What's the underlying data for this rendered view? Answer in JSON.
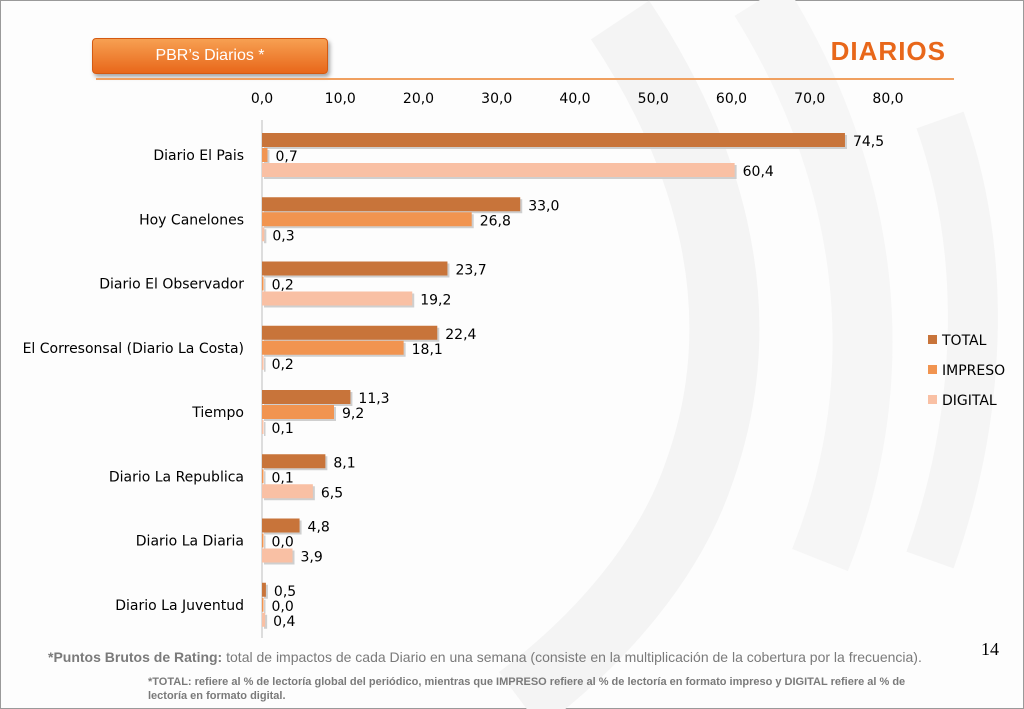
{
  "header": {
    "tag_label": "PBR’s Diarios  *",
    "title": "DIARIOS"
  },
  "page_number": "14",
  "footnote": {
    "lead": "*Puntos Brutos de Rating:",
    "text": " total de impactos de cada Diario en una semana (consiste en la multiplicación de la cobertura por la frecuencia).",
    "note": "*TOTAL: refiere al % de lectoría global del periódico, mientras que IMPRESO refiere al % de lectoría en formato impreso y DIGITAL refiere al % de lectoría en formato digital."
  },
  "colors": {
    "total": "#c8743a",
    "impreso": "#f19450",
    "digital": "#f9c0a4",
    "accent": "#e8671a"
  },
  "chart_data": {
    "type": "bar",
    "orientation": "horizontal",
    "categories": [
      "Diario El Pais",
      "Hoy Canelones",
      "Diario El Observador",
      "El Corresonsal (Diario La Costa)",
      "Tiempo",
      "Diario La Republica",
      "Diario La Diaria",
      "Diario La Juventud"
    ],
    "series": [
      {
        "name": "TOTAL",
        "values": [
          74.5,
          33.0,
          23.7,
          22.4,
          11.3,
          8.1,
          4.8,
          0.5
        ],
        "labels": [
          "74,5",
          "33,0",
          "23,7",
          "22,4",
          "11,3",
          "8,1",
          "4,8",
          "0,5"
        ]
      },
      {
        "name": "IMPRESO",
        "values": [
          0.7,
          26.8,
          0.2,
          18.1,
          9.2,
          0.1,
          0.0,
          0.0
        ],
        "labels": [
          "0,7",
          "26,8",
          "0,2",
          "18,1",
          "9,2",
          "0,1",
          "0,0",
          "0,0"
        ]
      },
      {
        "name": "DIGITAL",
        "values": [
          60.4,
          0.3,
          19.2,
          0.2,
          0.1,
          6.5,
          3.9,
          0.4
        ],
        "labels": [
          "60,4",
          "0,3",
          "19,2",
          "0,2",
          "0,1",
          "6,5",
          "3,9",
          "0,4"
        ]
      }
    ],
    "xlim": [
      0,
      80
    ],
    "xticks": [
      0,
      10,
      20,
      30,
      40,
      50,
      60,
      70,
      80
    ],
    "xtick_labels": [
      "0,0",
      "10,0",
      "20,0",
      "30,0",
      "40,0",
      "50,0",
      "60,0",
      "70,0",
      "80,0"
    ],
    "x_axis_position": "top",
    "grid": false,
    "legend": "right"
  }
}
